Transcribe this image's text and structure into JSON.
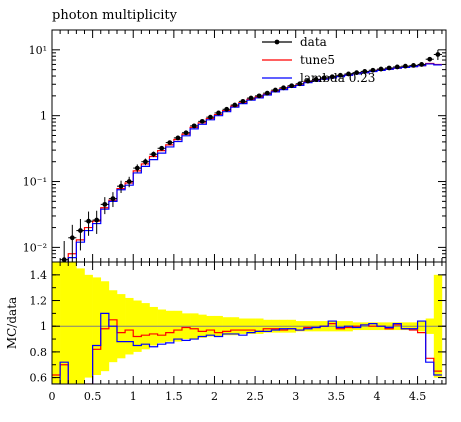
{
  "chart_data": [
    {
      "type": "line",
      "panel": "main",
      "title": "photon multiplicity",
      "xlabel": "",
      "ylabel": "",
      "xlim": [
        0,
        4.85
      ],
      "ylim": [
        0.006,
        20
      ],
      "yscale": "log",
      "x_ticks": [
        "0",
        "0.5",
        "1",
        "1.5",
        "2",
        "2.5",
        "3",
        "3.5",
        "4",
        "4.5"
      ],
      "y_ticks": [
        {
          "label": "10⁻²",
          "value": 0.01
        },
        {
          "label": "10⁻¹",
          "value": 0.1
        },
        {
          "label": "1",
          "value": 1
        },
        {
          "label": "10¹",
          "value": 10
        }
      ],
      "legend_position": "top-right",
      "bin_edges": [
        0,
        0.1,
        0.2,
        0.3,
        0.4,
        0.5,
        0.6,
        0.7,
        0.8,
        0.9,
        1.0,
        1.1,
        1.2,
        1.3,
        1.4,
        1.5,
        1.6,
        1.7,
        1.8,
        1.9,
        2.0,
        2.1,
        2.2,
        2.3,
        2.4,
        2.5,
        2.6,
        2.7,
        2.8,
        2.9,
        3.0,
        3.1,
        3.2,
        3.3,
        3.4,
        3.5,
        3.6,
        3.7,
        3.8,
        3.9,
        4.0,
        4.1,
        4.2,
        4.3,
        4.4,
        4.5,
        4.6,
        4.7,
        4.8
      ],
      "series": [
        {
          "name": "data",
          "color": "#000000",
          "style": "points",
          "x": [
            0.15,
            0.25,
            0.35,
            0.45,
            0.55,
            0.65,
            0.75,
            0.85,
            0.95,
            1.05,
            1.15,
            1.25,
            1.35,
            1.45,
            1.55,
            1.65,
            1.75,
            1.85,
            1.95,
            2.05,
            2.15,
            2.25,
            2.35,
            2.45,
            2.55,
            2.65,
            2.75,
            2.85,
            2.95,
            3.05,
            3.15,
            3.25,
            3.35,
            3.45,
            3.55,
            3.65,
            3.75,
            3.85,
            3.95,
            4.05,
            4.15,
            4.25,
            4.35,
            4.45,
            4.55,
            4.65,
            4.75
          ],
          "y": [
            0.0065,
            0.014,
            0.018,
            0.025,
            0.026,
            0.045,
            0.055,
            0.085,
            0.1,
            0.16,
            0.2,
            0.26,
            0.32,
            0.39,
            0.46,
            0.55,
            0.7,
            0.82,
            0.95,
            1.1,
            1.25,
            1.45,
            1.65,
            1.85,
            2.0,
            2.2,
            2.45,
            2.65,
            2.85,
            3.05,
            3.35,
            3.55,
            3.75,
            3.9,
            4.1,
            4.3,
            4.5,
            4.7,
            4.9,
            5.1,
            5.3,
            5.5,
            5.65,
            5.8,
            6.0,
            7.2,
            8.5
          ],
          "yerr": [
            0.006,
            0.008,
            0.009,
            0.01,
            0.01,
            0.013,
            0.014,
            0.018,
            0.018,
            0.022,
            0.023,
            0.025,
            0.025,
            0.027,
            0.03,
            0.03,
            0.035,
            0.035,
            0.04,
            0.04,
            0.045,
            0.05,
            0.05,
            0.055,
            0.06,
            0.06,
            0.07,
            0.07,
            0.07,
            0.08,
            0.08,
            0.08,
            0.09,
            0.09,
            0.1,
            0.1,
            0.1,
            0.11,
            0.11,
            0.12,
            0.12,
            0.13,
            0.13,
            0.14,
            0.15,
            0.5,
            1.5
          ]
        },
        {
          "name": "tune5",
          "color": "#ff0000",
          "style": "step",
          "values": [
            0.004,
            0.005,
            0.008,
            0.013,
            0.02,
            0.025,
            0.04,
            0.052,
            0.078,
            0.095,
            0.145,
            0.185,
            0.24,
            0.295,
            0.36,
            0.435,
            0.525,
            0.665,
            0.78,
            0.905,
            1.04,
            1.195,
            1.39,
            1.575,
            1.77,
            1.92,
            2.11,
            2.35,
            2.54,
            2.74,
            2.93,
            3.22,
            3.41,
            3.6,
            3.75,
            3.94,
            4.13,
            4.32,
            4.51,
            4.7,
            4.9,
            5.09,
            5.28,
            5.42,
            5.57,
            5.76,
            6.2,
            6.0
          ]
        },
        {
          "name": "lambda 0.23",
          "color": "#0000ff",
          "style": "step",
          "values": [
            0.004,
            0.005,
            0.007,
            0.012,
            0.018,
            0.023,
            0.038,
            0.05,
            0.075,
            0.088,
            0.135,
            0.17,
            0.215,
            0.27,
            0.335,
            0.405,
            0.495,
            0.63,
            0.74,
            0.865,
            1.0,
            1.15,
            1.345,
            1.525,
            1.72,
            1.86,
            2.06,
            2.3,
            2.49,
            2.69,
            2.88,
            3.17,
            3.36,
            3.58,
            3.73,
            3.92,
            4.11,
            4.3,
            4.49,
            4.68,
            4.88,
            5.07,
            5.26,
            5.4,
            5.55,
            5.74,
            6.1,
            5.9
          ]
        }
      ]
    },
    {
      "type": "line",
      "panel": "ratio",
      "xlabel": "",
      "ylabel": "MC/data",
      "xlim": [
        0,
        4.85
      ],
      "ylim": [
        0.55,
        1.5
      ],
      "x_ticks": [
        "0",
        "0.5",
        "1",
        "1.5",
        "2",
        "2.5",
        "3",
        "3.5",
        "4",
        "4.5"
      ],
      "y_ticks": [
        "0.6",
        "0.8",
        "1",
        "1.2",
        "1.4"
      ],
      "band": {
        "name": "data uncertainty",
        "color": "#ffff00",
        "x": [
          0.05,
          0.15,
          0.25,
          0.35,
          0.45,
          0.55,
          0.65,
          0.75,
          0.85,
          0.95,
          1.05,
          1.15,
          1.25,
          1.35,
          1.45,
          1.55,
          1.65,
          1.75,
          1.85,
          1.95,
          2.05,
          2.15,
          2.25,
          2.35,
          2.45,
          2.55,
          2.65,
          2.75,
          2.85,
          2.95,
          3.05,
          3.15,
          3.25,
          3.35,
          3.45,
          3.55,
          3.65,
          3.75,
          3.85,
          3.95,
          4.05,
          4.15,
          4.25,
          4.35,
          4.45,
          4.55,
          4.65,
          4.75
        ],
        "lower": [
          0.5,
          0.5,
          0.5,
          0.55,
          0.6,
          0.62,
          0.65,
          0.72,
          0.75,
          0.78,
          0.8,
          0.82,
          0.85,
          0.87,
          0.88,
          0.88,
          0.9,
          0.9,
          0.91,
          0.92,
          0.92,
          0.93,
          0.93,
          0.94,
          0.94,
          0.94,
          0.95,
          0.95,
          0.95,
          0.95,
          0.96,
          0.96,
          0.96,
          0.96,
          0.96,
          0.96,
          0.96,
          0.97,
          0.97,
          0.97,
          0.97,
          0.97,
          0.97,
          0.97,
          0.97,
          0.96,
          0.94,
          0.6
        ],
        "upper": [
          1.5,
          1.5,
          1.5,
          1.45,
          1.4,
          1.38,
          1.35,
          1.28,
          1.25,
          1.22,
          1.2,
          1.18,
          1.15,
          1.13,
          1.12,
          1.12,
          1.1,
          1.1,
          1.09,
          1.08,
          1.08,
          1.07,
          1.07,
          1.06,
          1.06,
          1.06,
          1.05,
          1.05,
          1.05,
          1.05,
          1.04,
          1.04,
          1.04,
          1.04,
          1.04,
          1.04,
          1.04,
          1.03,
          1.03,
          1.03,
          1.03,
          1.03,
          1.03,
          1.03,
          1.03,
          1.04,
          1.06,
          1.4
        ]
      },
      "series": [
        {
          "name": "tune5",
          "color": "#ff0000",
          "style": "step",
          "values": [
            0.62,
            0.7,
            0.5,
            0.5,
            0.55,
            0.82,
            0.98,
            1.05,
            0.95,
            0.97,
            0.92,
            0.93,
            0.94,
            0.93,
            0.95,
            0.97,
            0.99,
            0.98,
            0.96,
            0.97,
            0.95,
            0.96,
            0.97,
            0.97,
            0.97,
            0.96,
            0.98,
            0.98,
            0.97,
            0.98,
            0.97,
            0.99,
            0.99,
            1.0,
            1.02,
            0.98,
            0.99,
            1.0,
            1.01,
            1.0,
            1.0,
            0.98,
            1.01,
            0.98,
            0.97,
            0.95,
            0.75,
            0.65
          ]
        },
        {
          "name": "lambda 0.23",
          "color": "#0000ff",
          "style": "step",
          "values": [
            0.55,
            0.72,
            0.5,
            0.5,
            0.5,
            0.85,
            1.1,
            1.0,
            0.88,
            0.88,
            0.85,
            0.86,
            0.84,
            0.86,
            0.87,
            0.9,
            0.89,
            0.9,
            0.92,
            0.93,
            0.92,
            0.94,
            0.94,
            0.93,
            0.95,
            0.96,
            0.96,
            0.97,
            0.98,
            0.98,
            0.97,
            0.98,
            0.99,
            1.0,
            1.04,
            0.99,
            1.0,
            0.99,
            1.01,
            1.02,
            1.0,
            0.99,
            1.02,
            0.98,
            0.98,
            1.04,
            0.72,
            0.62
          ]
        }
      ]
    }
  ]
}
